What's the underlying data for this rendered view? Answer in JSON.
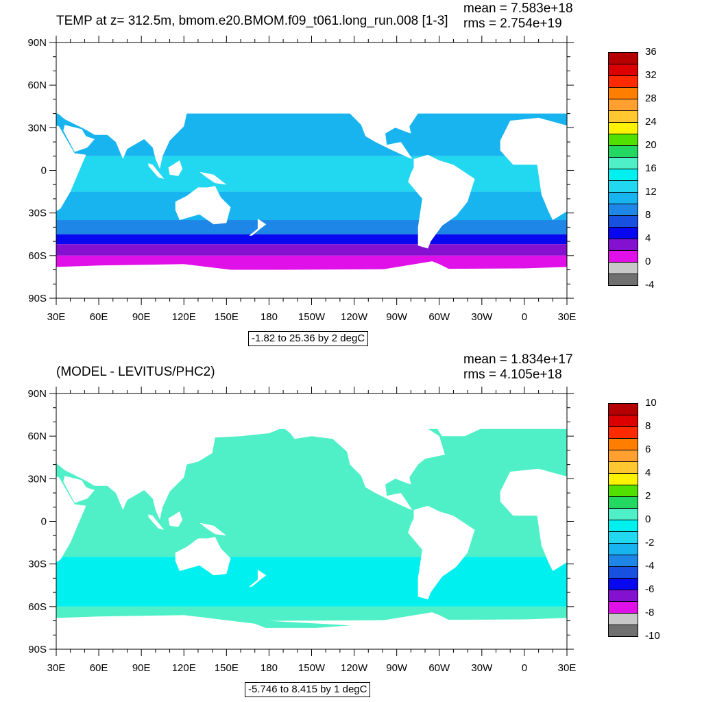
{
  "panels": [
    {
      "title": "TEMP at z= 312.5m, bmom.e20.BMOM.f09_t061.long_run.008 [1-3]",
      "mean": "mean = 7.583e+18",
      "rms": "rms = 2.754e+19",
      "range": "-1.82 to 25.36 by 2 degC",
      "colorbar": {
        "labels": [
          "36",
          "32",
          "28",
          "24",
          "20",
          "16",
          "12",
          "8",
          "4",
          "0",
          "-4"
        ],
        "colors": [
          "#B40000",
          "#DC0000",
          "#FF2A00",
          "#FF7E00",
          "#FFA030",
          "#FFC830",
          "#FFF200",
          "#52E000",
          "#22D860",
          "#4FF0C8",
          "#00F0F0",
          "#22D8F0",
          "#18B4F0",
          "#1E86E6",
          "#1850E0",
          "#0808F0",
          "#8410D0",
          "#E010E8",
          "#C8C8C8",
          "#707070"
        ]
      }
    },
    {
      "title": "(MODEL - LEVITUS/PHC2)",
      "mean": "mean = 1.834e+17",
      "rms": "rms = 4.105e+18",
      "range": "-5.746 to 8.415 by 1 degC",
      "colorbar": {
        "labels": [
          "10",
          "8",
          "6",
          "4",
          "2",
          "0",
          "-2",
          "-4",
          "-6",
          "-8",
          "-10"
        ],
        "colors": [
          "#B40000",
          "#DC0000",
          "#FF2A00",
          "#FF7E00",
          "#FFA030",
          "#FFC830",
          "#FFF200",
          "#52E000",
          "#22D860",
          "#4FF0C8",
          "#00F0F0",
          "#22D8F0",
          "#18B4F0",
          "#1E86E6",
          "#1850E0",
          "#0808F0",
          "#8410D0",
          "#E010E8",
          "#C8C8C8",
          "#707070"
        ]
      }
    }
  ],
  "axes": {
    "lat_labels": [
      "90N",
      "60N",
      "30N",
      "0",
      "30S",
      "60S",
      "90S"
    ],
    "lon_labels": [
      "30E",
      "60E",
      "90E",
      "120E",
      "150E",
      "180",
      "150W",
      "120W",
      "90W",
      "60W",
      "30W",
      "0",
      "30E"
    ]
  },
  "chart_data": [
    {
      "type": "heatmap",
      "title": "TEMP at z= 312.5m, bmom.e20.BMOM.f09_t061.long_run.008 [1-3]",
      "x": [
        "30E",
        "60E",
        "90E",
        "120E",
        "150E",
        "180",
        "150W",
        "120W",
        "90W",
        "60W",
        "30W",
        "0",
        "30E"
      ],
      "y": [
        "90N",
        "60N",
        "30N",
        "0",
        "30S",
        "60S",
        "90S"
      ],
      "colorbar_levels": [
        -4,
        -2,
        0,
        2,
        4,
        6,
        8,
        10,
        12,
        14,
        16,
        18,
        20,
        22,
        24,
        26,
        28,
        30,
        32,
        34,
        36
      ],
      "value_range": "-1.82 to 25.36 by 2 degC",
      "mean": "7.583e+18",
      "rms": "2.754e+19",
      "zones": [
        {
          "lat_from": 40,
          "lat_to": 10,
          "value": 10
        },
        {
          "lat_from": 10,
          "lat_to": -15,
          "value": 13
        },
        {
          "lat_from": -15,
          "lat_to": -35,
          "value": 11
        },
        {
          "lat_from": -35,
          "lat_to": -45,
          "value": 9
        },
        {
          "lat_from": -45,
          "lat_to": -52,
          "value": 5
        },
        {
          "lat_from": -52,
          "lat_to": -60,
          "value": 3
        },
        {
          "lat_from": -60,
          "lat_to": -70,
          "value": 1
        }
      ]
    },
    {
      "type": "heatmap",
      "title": "(MODEL - LEVITUS/PHC2)",
      "x": [
        "30E",
        "60E",
        "90E",
        "120E",
        "150E",
        "180",
        "150W",
        "120W",
        "90W",
        "60W",
        "30W",
        "0",
        "30E"
      ],
      "y": [
        "90N",
        "60N",
        "30N",
        "0",
        "30S",
        "60S",
        "90S"
      ],
      "colorbar_levels": [
        -10,
        -9,
        -8,
        -7,
        -6,
        -5,
        -4,
        -3,
        -2,
        -1,
        0,
        1,
        2,
        3,
        4,
        5,
        6,
        7,
        8,
        9,
        10
      ],
      "value_range": "-5.746 to 8.415 by 1 degC",
      "mean": "1.834e+17",
      "rms": "4.105e+18",
      "zones": [
        {
          "lat_from": 65,
          "lat_to": 20,
          "value": 0.5
        },
        {
          "lat_from": 20,
          "lat_to": -25,
          "value": 0.3
        },
        {
          "lat_from": -25,
          "lat_to": -60,
          "value": -0.4
        },
        {
          "lat_from": -60,
          "lat_to": -75,
          "value": 0.2
        }
      ]
    }
  ]
}
